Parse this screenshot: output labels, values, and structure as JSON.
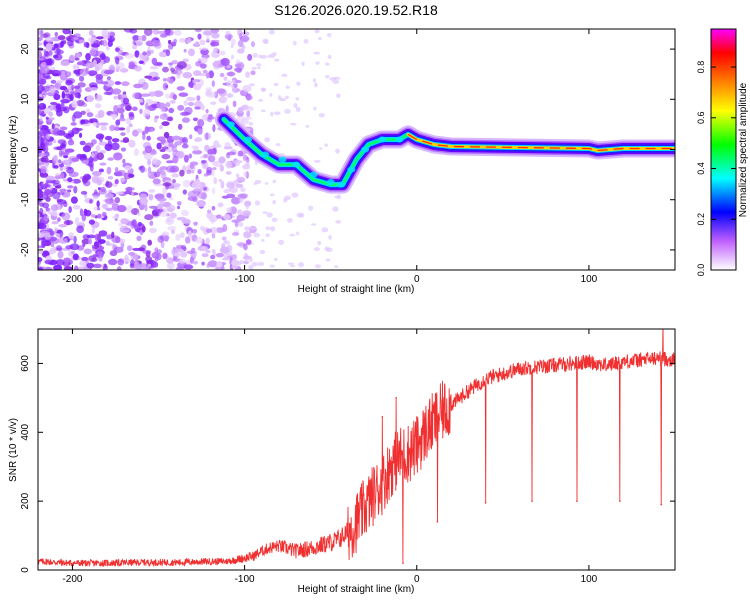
{
  "title": "S126.2026.020.19.52.R18",
  "chart_data": [
    {
      "type": "heatmap",
      "title": "S126.2026.020.19.52.R18",
      "xlabel": "Height of straight line (km)",
      "ylabel": "Frequency (Hz)",
      "xlim": [
        -220,
        150
      ],
      "ylim": [
        -24,
        24
      ],
      "xticks": [
        -200,
        -100,
        0,
        100
      ],
      "yticks": [
        -20,
        -10,
        0,
        10,
        20
      ],
      "xtick_labels": [
        "-200",
        "-100",
        "0",
        "100"
      ],
      "ytick_labels": [
        "-20",
        "-10",
        "0",
        "10",
        "20"
      ],
      "colorbar": {
        "label": "Normalized spectral amplitude",
        "range": [
          0,
          0.95
        ],
        "ticks": [
          0,
          0.2,
          0.4,
          0.6,
          0.8
        ],
        "tick_labels": [
          "0.0",
          "0.2",
          "0.4",
          "0.6",
          "0.8"
        ],
        "colors": [
          "#ffffff",
          "#c060ff",
          "#0000ff",
          "#00ffff",
          "#00ff00",
          "#ffff00",
          "#ff8000",
          "#ff0000",
          "#ff00ff"
        ]
      },
      "ridge": {
        "x": [
          -112,
          -100,
          -90,
          -80,
          -70,
          -60,
          -50,
          -43,
          -35,
          -28,
          -20,
          -10,
          -5,
          0,
          10,
          20,
          40,
          60,
          80,
          100,
          105,
          120,
          150
        ],
        "y": [
          6,
          2,
          -1,
          -3,
          -3,
          -6,
          -7,
          -7,
          -2,
          1,
          2,
          2,
          3,
          2,
          1,
          0.6,
          0.5,
          0.4,
          0.3,
          0.2,
          -0.2,
          0.2,
          0.2
        ]
      },
      "noise_region": {
        "x": [
          -220,
          -110
        ],
        "y": [
          -24,
          24
        ],
        "level": "low (0.0-0.2)"
      }
    },
    {
      "type": "line",
      "xlabel": "Height of straight line (km)",
      "ylabel": "SNR (10 * v/v)",
      "xlim": [
        -220,
        150
      ],
      "ylim": [
        0,
        700
      ],
      "xticks": [
        -200,
        -100,
        0,
        100
      ],
      "yticks": [
        0,
        200,
        400,
        600
      ],
      "xtick_labels": [
        "-200",
        "-100",
        "0",
        "100"
      ],
      "ytick_labels": [
        "0",
        "200",
        "400",
        "600"
      ],
      "line_color": "#f03030",
      "series": [
        {
          "name": "SNR",
          "x": [
            -220,
            -200,
            -180,
            -160,
            -140,
            -120,
            -110,
            -100,
            -95,
            -90,
            -85,
            -80,
            -70,
            -60,
            -50,
            -45,
            -40,
            -35,
            -30,
            -25,
            -20,
            -15,
            -10,
            -5,
            0,
            5,
            10,
            15,
            20,
            30,
            40,
            50,
            60,
            70,
            80,
            90,
            100,
            110,
            120,
            130,
            140,
            150
          ],
          "y": [
            25,
            20,
            20,
            22,
            22,
            25,
            25,
            35,
            40,
            55,
            65,
            70,
            55,
            65,
            80,
            90,
            110,
            140,
            180,
            220,
            250,
            300,
            330,
            340,
            360,
            400,
            430,
            460,
            480,
            520,
            555,
            570,
            585,
            590,
            595,
            600,
            605,
            595,
            605,
            610,
            615,
            610
          ]
        }
      ],
      "spikes": [
        {
          "x": -20,
          "y": 445,
          "direction": "up"
        },
        {
          "x": -12,
          "y": 500,
          "direction": "up"
        },
        {
          "x": -8,
          "y": 20,
          "direction": "down"
        },
        {
          "x": 12,
          "y": 140,
          "direction": "down"
        },
        {
          "x": 40,
          "y": 195,
          "direction": "down"
        },
        {
          "x": 67,
          "y": 200,
          "direction": "down"
        },
        {
          "x": 93,
          "y": 200,
          "direction": "down"
        },
        {
          "x": 118,
          "y": 200,
          "direction": "down"
        },
        {
          "x": 142,
          "y": 190,
          "direction": "down"
        },
        {
          "x": 143,
          "y": 715,
          "direction": "up"
        }
      ]
    }
  ]
}
